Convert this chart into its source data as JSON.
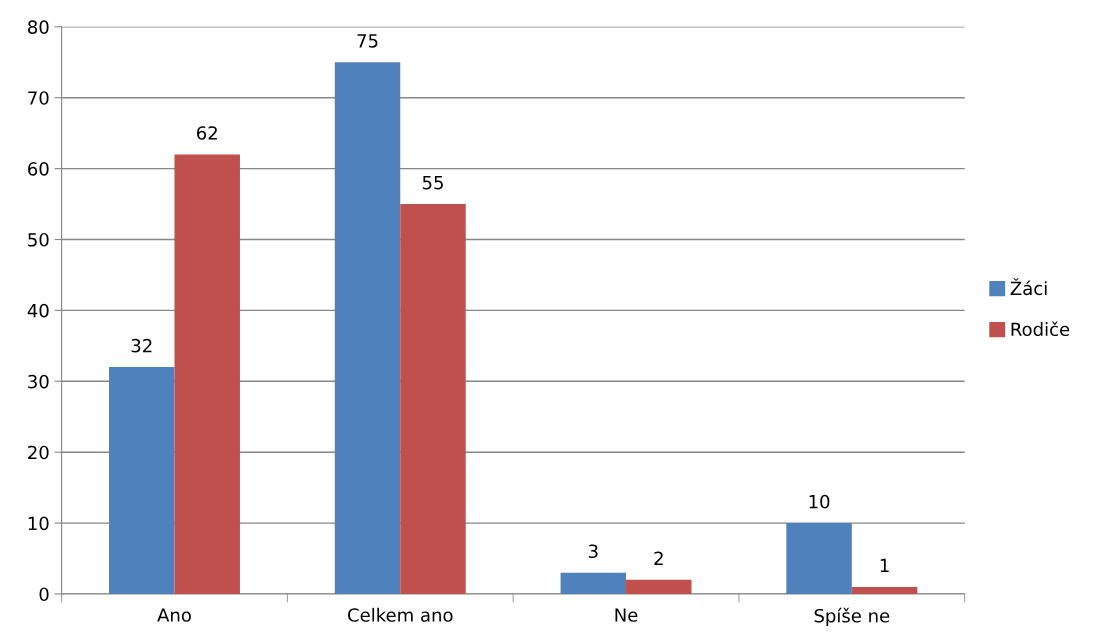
{
  "chart_data": {
    "type": "bar",
    "categories": [
      "Ano",
      "Celkem ano",
      "Ne",
      "Spíše ne"
    ],
    "series": [
      {
        "name": "Žáci",
        "color": "#4f81bd",
        "values": [
          32,
          75,
          3,
          10
        ]
      },
      {
        "name": "Rodiče",
        "color": "#c0504d",
        "values": [
          62,
          55,
          2,
          1
        ]
      }
    ],
    "ylim": [
      0,
      80
    ],
    "yticks": [
      0,
      10,
      20,
      30,
      40,
      50,
      60,
      70,
      80
    ],
    "grid": "y",
    "legend": "right",
    "data_labels": true
  }
}
